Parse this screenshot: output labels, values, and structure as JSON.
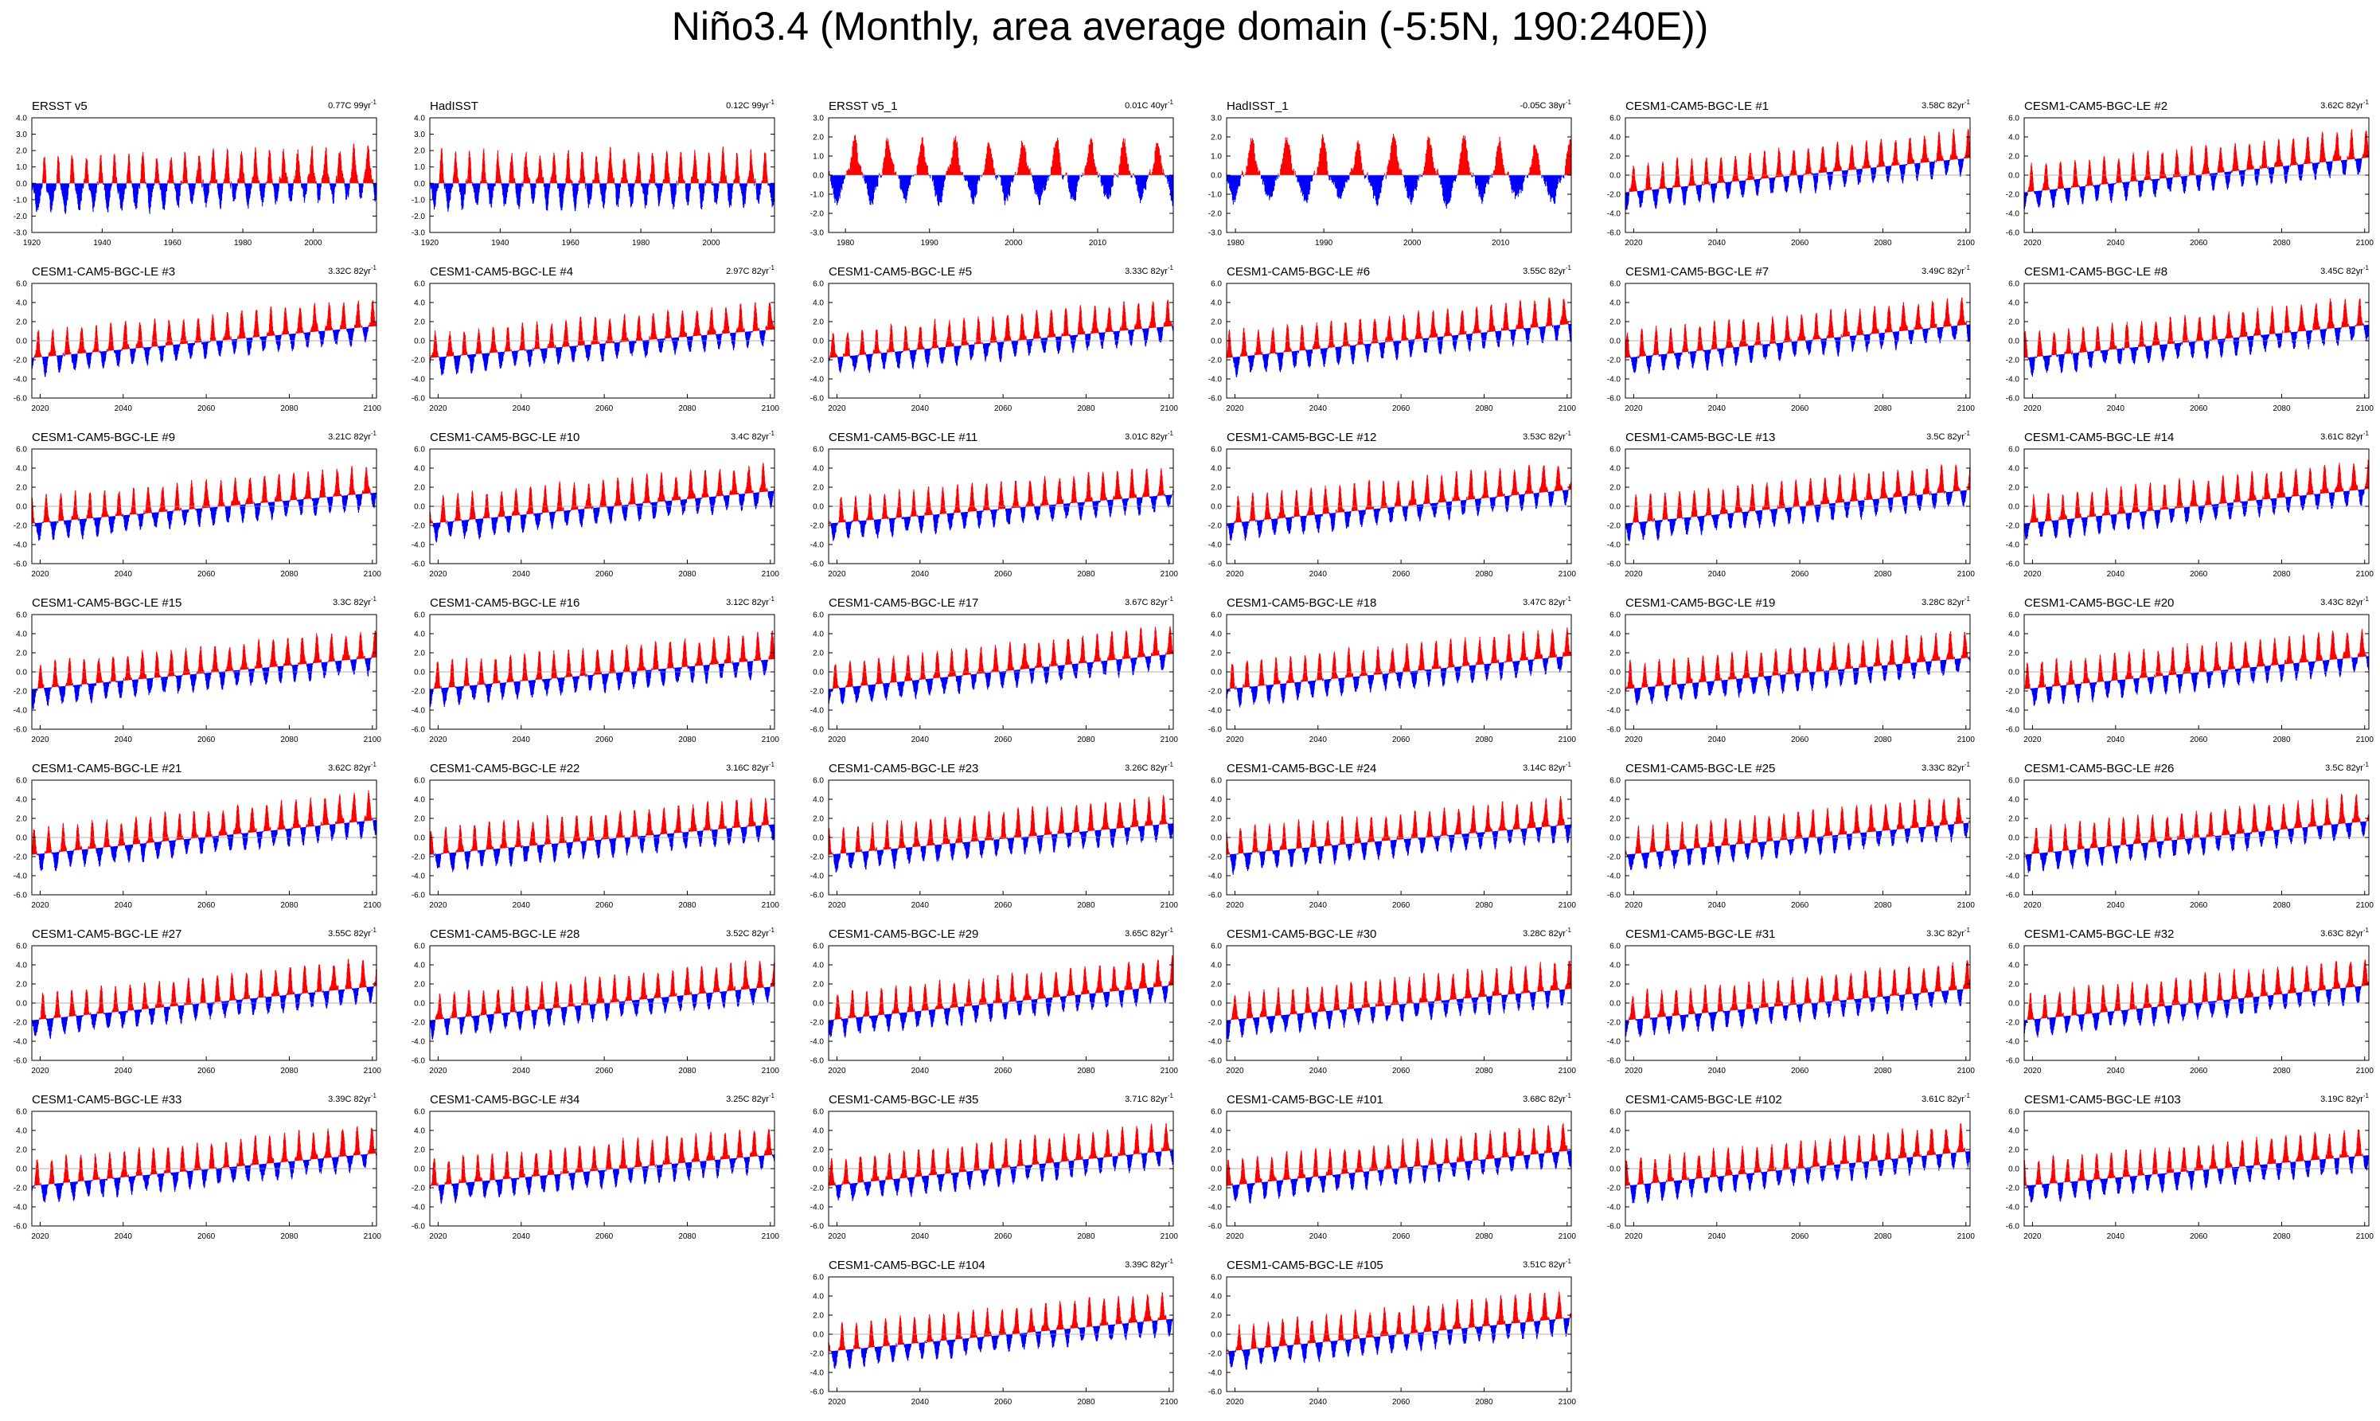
{
  "title": "Niño3.4 (Monthly, area average domain (-5:5N, 190:240E))",
  "colors": {
    "positive": "#ff0000",
    "negative": "#0000ff",
    "axis": "#000000",
    "zero_line": "#999999"
  },
  "chart_data": {
    "type": "area",
    "description_fill": "area above reference line filled red, below filled blue",
    "panel_units": "C",
    "panels": [
      {
        "name": "ERSST v5",
        "trend": "0.77C 99yr",
        "start_year": 1920,
        "end_year": 2017,
        "ylim": [
          -3,
          4
        ],
        "yticks": [
          -3.0,
          -2.0,
          -1.0,
          0.0,
          1.0,
          2.0,
          3.0,
          4.0
        ],
        "xticks": [
          1920,
          1940,
          1960,
          1980,
          2000
        ],
        "obs": true,
        "trend_total": 0.77
      },
      {
        "name": "HadISST",
        "trend": "0.12C 99yr",
        "start_year": 1920,
        "end_year": 2017,
        "ylim": [
          -3,
          4
        ],
        "yticks": [
          -3.0,
          -2.0,
          -1.0,
          0.0,
          1.0,
          2.0,
          3.0,
          4.0
        ],
        "xticks": [
          1920,
          1940,
          1960,
          1980,
          2000
        ],
        "obs": true,
        "trend_total": 0.12
      },
      {
        "name": "ERSST v5_1",
        "trend": "0.01C 40yr",
        "start_year": 1978,
        "end_year": 2018,
        "ylim": [
          -3,
          3
        ],
        "yticks": [
          -3.0,
          -2.0,
          -1.0,
          0.0,
          1.0,
          2.0,
          3.0
        ],
        "xticks": [
          1980,
          1990,
          2000,
          2010
        ],
        "obs": true,
        "trend_total": 0.01
      },
      {
        "name": "HadISST_1",
        "trend": "-0.05C 38yr",
        "start_year": 1979,
        "end_year": 2017,
        "ylim": [
          -3,
          3
        ],
        "yticks": [
          -3.0,
          -2.0,
          -1.0,
          0.0,
          1.0,
          2.0,
          3.0
        ],
        "xticks": [
          1980,
          1990,
          2000,
          2010
        ],
        "obs": true,
        "trend_total": -0.05
      },
      {
        "name": "CESM1-CAM5-BGC-LE #1",
        "trend": "3.58C 82yr",
        "trend_total": 3.58
      },
      {
        "name": "CESM1-CAM5-BGC-LE #2",
        "trend": "3.62C 82yr",
        "trend_total": 3.62
      },
      {
        "name": "CESM1-CAM5-BGC-LE #3",
        "trend": "3.32C 82yr",
        "trend_total": 3.32
      },
      {
        "name": "CESM1-CAM5-BGC-LE #4",
        "trend": "2.97C 82yr",
        "trend_total": 2.97
      },
      {
        "name": "CESM1-CAM5-BGC-LE #5",
        "trend": "3.33C 82yr",
        "trend_total": 3.33
      },
      {
        "name": "CESM1-CAM5-BGC-LE #6",
        "trend": "3.55C 82yr",
        "trend_total": 3.55
      },
      {
        "name": "CESM1-CAM5-BGC-LE #7",
        "trend": "3.49C 82yr",
        "trend_total": 3.49
      },
      {
        "name": "CESM1-CAM5-BGC-LE #8",
        "trend": "3.45C 82yr",
        "trend_total": 3.45
      },
      {
        "name": "CESM1-CAM5-BGC-LE #9",
        "trend": "3.21C 82yr",
        "trend_total": 3.21
      },
      {
        "name": "CESM1-CAM5-BGC-LE #10",
        "trend": "3.4C 82yr",
        "trend_total": 3.4
      },
      {
        "name": "CESM1-CAM5-BGC-LE #11",
        "trend": "3.01C 82yr",
        "trend_total": 3.01
      },
      {
        "name": "CESM1-CAM5-BGC-LE #12",
        "trend": "3.53C 82yr",
        "trend_total": 3.53
      },
      {
        "name": "CESM1-CAM5-BGC-LE #13",
        "trend": "3.5C 82yr",
        "trend_total": 3.5
      },
      {
        "name": "CESM1-CAM5-BGC-LE #14",
        "trend": "3.61C 82yr",
        "trend_total": 3.61
      },
      {
        "name": "CESM1-CAM5-BGC-LE #15",
        "trend": "3.3C 82yr",
        "trend_total": 3.3
      },
      {
        "name": "CESM1-CAM5-BGC-LE #16",
        "trend": "3.12C 82yr",
        "trend_total": 3.12
      },
      {
        "name": "CESM1-CAM5-BGC-LE #17",
        "trend": "3.67C 82yr",
        "trend_total": 3.67
      },
      {
        "name": "CESM1-CAM5-BGC-LE #18",
        "trend": "3.47C 82yr",
        "trend_total": 3.47
      },
      {
        "name": "CESM1-CAM5-BGC-LE #19",
        "trend": "3.28C 82yr",
        "trend_total": 3.28
      },
      {
        "name": "CESM1-CAM5-BGC-LE #20",
        "trend": "3.43C 82yr",
        "trend_total": 3.43
      },
      {
        "name": "CESM1-CAM5-BGC-LE #21",
        "trend": "3.62C 82yr",
        "trend_total": 3.62
      },
      {
        "name": "CESM1-CAM5-BGC-LE #22",
        "trend": "3.16C 82yr",
        "trend_total": 3.16
      },
      {
        "name": "CESM1-CAM5-BGC-LE #23",
        "trend": "3.26C 82yr",
        "trend_total": 3.26
      },
      {
        "name": "CESM1-CAM5-BGC-LE #24",
        "trend": "3.14C 82yr",
        "trend_total": 3.14
      },
      {
        "name": "CESM1-CAM5-BGC-LE #25",
        "trend": "3.33C 82yr",
        "trend_total": 3.33
      },
      {
        "name": "CESM1-CAM5-BGC-LE #26",
        "trend": "3.5C 82yr",
        "trend_total": 3.5
      },
      {
        "name": "CESM1-CAM5-BGC-LE #27",
        "trend": "3.55C 82yr",
        "trend_total": 3.55
      },
      {
        "name": "CESM1-CAM5-BGC-LE #28",
        "trend": "3.52C 82yr",
        "trend_total": 3.52
      },
      {
        "name": "CESM1-CAM5-BGC-LE #29",
        "trend": "3.65C 82yr",
        "trend_total": 3.65
      },
      {
        "name": "CESM1-CAM5-BGC-LE #30",
        "trend": "3.28C 82yr",
        "trend_total": 3.28
      },
      {
        "name": "CESM1-CAM5-BGC-LE #31",
        "trend": "3.3C 82yr",
        "trend_total": 3.3
      },
      {
        "name": "CESM1-CAM5-BGC-LE #32",
        "trend": "3.63C 82yr",
        "trend_total": 3.63
      },
      {
        "name": "CESM1-CAM5-BGC-LE #33",
        "trend": "3.39C 82yr",
        "trend_total": 3.39
      },
      {
        "name": "CESM1-CAM5-BGC-LE #34",
        "trend": "3.25C 82yr",
        "trend_total": 3.25
      },
      {
        "name": "CESM1-CAM5-BGC-LE #35",
        "trend": "3.71C 82yr",
        "trend_total": 3.71
      },
      {
        "name": "CESM1-CAM5-BGC-LE #101",
        "trend": "3.68C 82yr",
        "trend_total": 3.68
      },
      {
        "name": "CESM1-CAM5-BGC-LE #102",
        "trend": "3.61C 82yr",
        "trend_total": 3.61
      },
      {
        "name": "CESM1-CAM5-BGC-LE #103",
        "trend": "3.19C 82yr",
        "trend_total": 3.19
      },
      {
        "name": "CESM1-CAM5-BGC-LE #104",
        "trend": "3.39C 82yr",
        "trend_total": 3.39
      },
      {
        "name": "CESM1-CAM5-BGC-LE #105",
        "trend": "3.51C 82yr",
        "trend_total": 3.51
      }
    ],
    "model_defaults": {
      "start_year": 2018,
      "end_year": 2100,
      "ylim": [
        -6,
        6
      ],
      "yticks": [
        -6.0,
        -4.0,
        -2.0,
        0.0,
        2.0,
        4.0,
        6.0
      ],
      "xticks": [
        2020,
        2040,
        2060,
        2080,
        2100
      ]
    },
    "trend_unit_suffix": "-1"
  }
}
